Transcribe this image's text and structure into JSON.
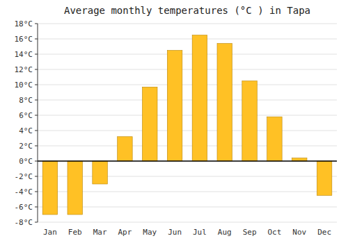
{
  "chart_data": {
    "type": "bar",
    "title": "Average monthly temperatures (°C ) in Tapa",
    "categories": [
      "Jan",
      "Feb",
      "Mar",
      "Apr",
      "May",
      "Jun",
      "Jul",
      "Aug",
      "Sep",
      "Oct",
      "Nov",
      "Dec"
    ],
    "values": [
      -7.0,
      -7.0,
      -3.0,
      3.2,
      9.7,
      14.5,
      16.5,
      15.4,
      10.5,
      5.8,
      0.4,
      -4.5
    ],
    "color": "#FFC125",
    "ylim": [
      -8,
      18
    ],
    "yticks": [
      {
        "value": -8,
        "label": "-8°C"
      },
      {
        "value": -6,
        "label": "-6°C"
      },
      {
        "value": -4,
        "label": "-4°C"
      },
      {
        "value": -2,
        "label": "-2°C"
      },
      {
        "value": 0,
        "label": "0°C"
      },
      {
        "value": 2,
        "label": "2°C"
      },
      {
        "value": 4,
        "label": "4°C"
      },
      {
        "value": 6,
        "label": "6°C"
      },
      {
        "value": 8,
        "label": "8°C"
      },
      {
        "value": 10,
        "label": "10°C"
      },
      {
        "value": 12,
        "label": "12°C"
      },
      {
        "value": 14,
        "label": "14°C"
      },
      {
        "value": 16,
        "label": "16°C"
      },
      {
        "value": 18,
        "label": "18°C"
      }
    ],
    "grid": true
  }
}
